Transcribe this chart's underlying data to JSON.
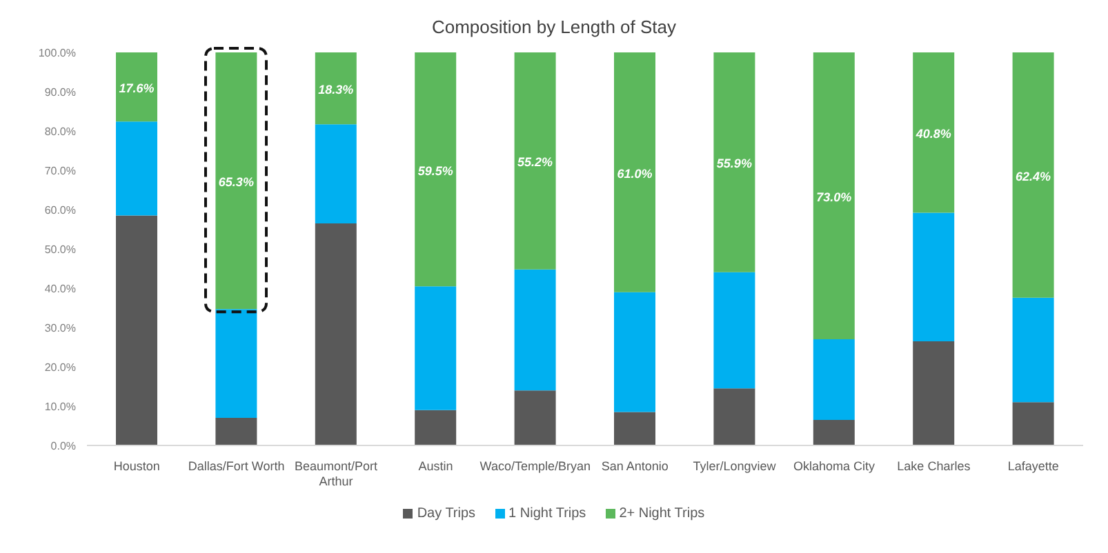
{
  "chart_data": {
    "type": "bar",
    "title": "Composition by Length of Stay",
    "stacked": true,
    "legend": "bottom",
    "grid": false,
    "categories": [
      "Houston",
      "Dallas/Fort Worth",
      "Beaumont/Port Arthur",
      "Austin",
      "Waco/Temple/Bryan",
      "San Antonio",
      "Tyler/Longview",
      "Oklahoma City",
      "Lake Charles",
      "Lafayette"
    ],
    "series": [
      {
        "name": "Day Trips",
        "color": "#595959",
        "values": [
          58.5,
          7,
          56.5,
          9,
          14,
          8.5,
          14.5,
          6.5,
          26.5,
          11
        ]
      },
      {
        "name": "1 Night Trips",
        "color": "#00b0f0",
        "values": [
          23.9,
          27.7,
          25.2,
          31.5,
          30.8,
          30.5,
          29.6,
          20.5,
          32.7,
          26.6
        ]
      },
      {
        "name": "2+ Night Trips",
        "color": "#5cb85c",
        "values": [
          17.6,
          65.3,
          18.3,
          59.5,
          55.2,
          61.0,
          55.9,
          73.0,
          40.8,
          62.4
        ],
        "value_labels": [
          "17.6%",
          "65.3%",
          "18.3%",
          "59.5%",
          "55.2%",
          "61.0%",
          "55.9%",
          "73.0%",
          "40.8%",
          "62.4%"
        ]
      }
    ],
    "ylim": [
      0,
      100
    ],
    "yticks": [
      {
        "value": 0,
        "label": "0.0%"
      },
      {
        "value": 10,
        "label": "10.0%"
      },
      {
        "value": 20,
        "label": "20.0%"
      },
      {
        "value": 30,
        "label": "30.0%"
      },
      {
        "value": 40,
        "label": "40.0%"
      },
      {
        "value": 50,
        "label": "50.0%"
      },
      {
        "value": 60,
        "label": "60.0%"
      },
      {
        "value": 70,
        "label": "70.0%"
      },
      {
        "value": 80,
        "label": "80.0%"
      },
      {
        "value": 90,
        "label": "90.0%"
      },
      {
        "value": 100,
        "label": "100.0%"
      }
    ]
  }
}
